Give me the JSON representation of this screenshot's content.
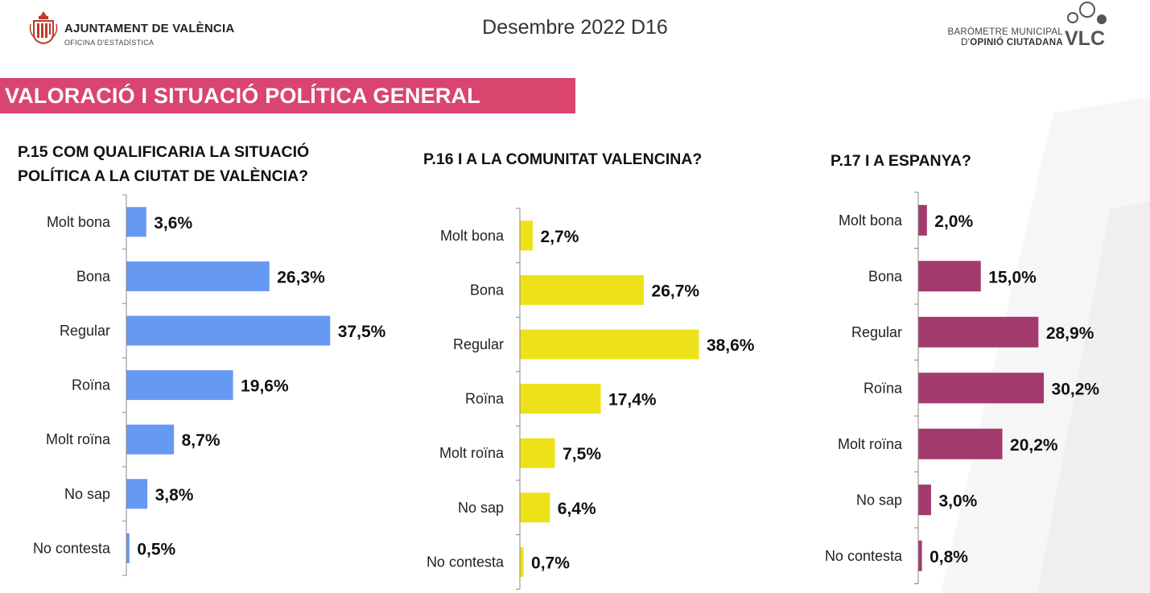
{
  "header": {
    "org_name": "AJUNTAMENT DE VALÈNCIA",
    "org_sub": "OFICINA D'ESTADÍSTICA",
    "date_title": "Desembre 2022 D16",
    "barometer_line1": "BARÒMETRE MUNICIPAL",
    "barometer_line2_prefix": "D'",
    "barometer_line2_bold": "OPINIÓ CIUTADANA",
    "barometer_logo_text": "VLC"
  },
  "section": {
    "title": "VALORACIÓ I SITUACIÓ POLÍTICA GENERAL"
  },
  "colors": {
    "section_bar": "#d9456f",
    "chart1_bar": "#6699f2",
    "chart2_bar": "#ede21a",
    "chart3_bar": "#a23a6e",
    "axis": "#888888"
  },
  "chart_data": [
    {
      "type": "bar",
      "orientation": "horizontal",
      "title_line1": "P.15 COM QUALIFICARIA LA SITUACIÓ",
      "title_line2": "POLÍTICA A LA  CIUTAT DE VALÈNCIA?",
      "categories": [
        "Molt bona",
        "Bona",
        "Regular",
        "Roïna",
        "Molt roïna",
        "No sap",
        "No contesta"
      ],
      "values": [
        3.6,
        26.3,
        37.5,
        19.6,
        8.7,
        3.8,
        0.5
      ],
      "value_labels": [
        "3,6%",
        "26,3%",
        "37,5%",
        "19,6%",
        "8,7%",
        "3,8%",
        "0,5%"
      ],
      "unit": "%",
      "xlim": [
        0,
        40
      ],
      "grid": false,
      "legend": "none",
      "color": "#6699f2"
    },
    {
      "type": "bar",
      "orientation": "horizontal",
      "title_line1": "P.16 I A LA COMUNITAT VALENCINA?",
      "title_line2": "",
      "categories": [
        "Molt bona",
        "Bona",
        "Regular",
        "Roïna",
        "Molt roïna",
        "No sap",
        "No contesta"
      ],
      "values": [
        2.7,
        26.7,
        38.6,
        17.4,
        7.5,
        6.4,
        0.7
      ],
      "value_labels": [
        "2,7%",
        "26,7%",
        "38,6%",
        "17,4%",
        "7,5%",
        "6,4%",
        "0,7%"
      ],
      "unit": "%",
      "xlim": [
        0,
        40
      ],
      "grid": false,
      "legend": "none",
      "color": "#ede21a"
    },
    {
      "type": "bar",
      "orientation": "horizontal",
      "title_line1": "P.17 I A ESPANYA?",
      "title_line2": "",
      "categories": [
        "Molt bona",
        "Bona",
        "Regular",
        "Roïna",
        "Molt roïna",
        "No sap",
        "No contesta"
      ],
      "values": [
        2.0,
        15.0,
        28.9,
        30.2,
        20.2,
        3.0,
        0.8
      ],
      "value_labels": [
        "2,0%",
        "15,0%",
        "28,9%",
        "30,2%",
        "20,2%",
        "3,0%",
        "0,8%"
      ],
      "unit": "%",
      "xlim": [
        0,
        40
      ],
      "grid": false,
      "legend": "none",
      "color": "#a23a6e"
    }
  ]
}
